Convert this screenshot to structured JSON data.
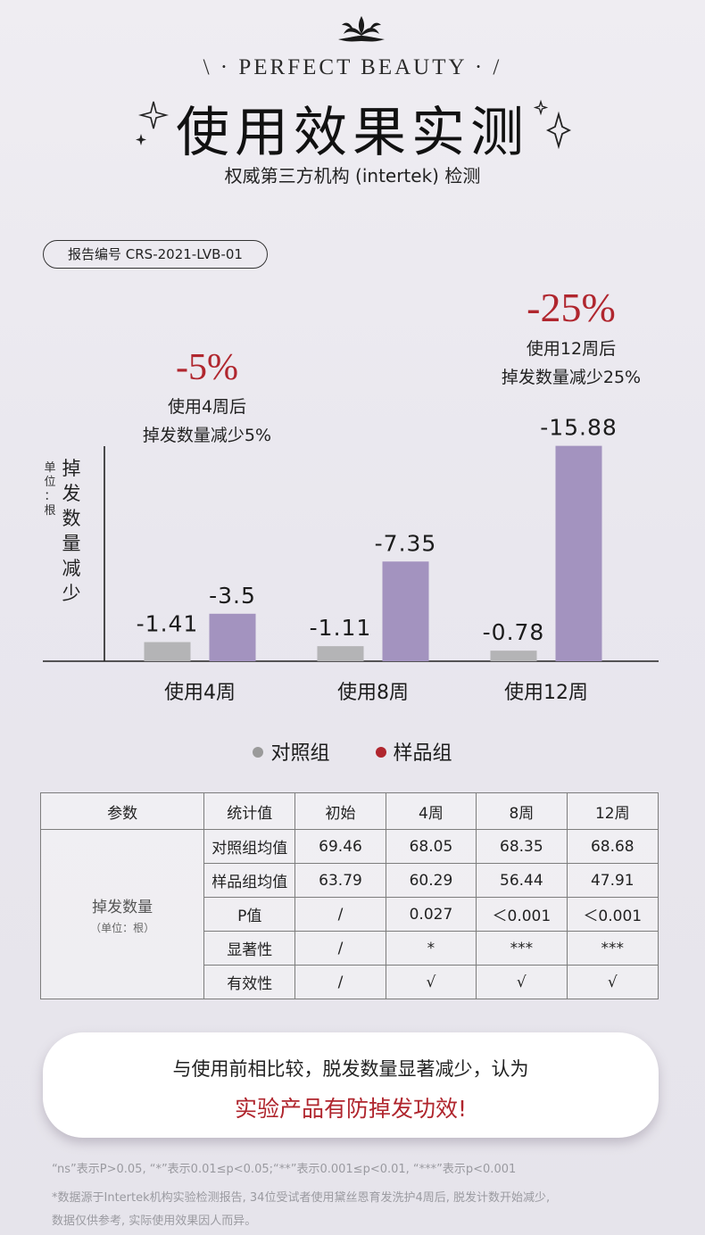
{
  "header": {
    "tagline": "\\ · PERFECT BEAUTY · /",
    "title": "使用效果实测",
    "subtitle": "权威第三方机构 (intertek) 检测",
    "report_no": "报告编号 CRS-2021-LVB-01"
  },
  "callouts": [
    {
      "percent": "-5%",
      "line1": "使用4周后",
      "line2": "掉发数量减少5%"
    },
    {
      "percent": "-25%",
      "line1": "使用12周后",
      "line2": "掉发数量减少25%"
    }
  ],
  "chart_data": {
    "type": "bar",
    "ylabel": "掉发数量减少",
    "unit_label": "单位：根",
    "categories": [
      "使用4周",
      "使用8周",
      "使用12周"
    ],
    "series": [
      {
        "name": "对照组",
        "values": [
          -1.41,
          -1.11,
          -0.78
        ],
        "labels": [
          "-1.41",
          "-1.11",
          "-0.78"
        ],
        "color": "#b4b4b6"
      },
      {
        "name": "样品组",
        "values": [
          -3.5,
          -7.35,
          -15.88
        ],
        "labels": [
          "-3.5",
          "-7.35",
          "-15.88"
        ],
        "color": "#a393bf"
      }
    ],
    "legend": [
      {
        "name": "对照组",
        "dot_color": "#9a9a9a"
      },
      {
        "name": "样品组",
        "dot_color": "#b0262e"
      }
    ]
  },
  "table": {
    "headers": [
      "参数",
      "统计值",
      "初始",
      "4周",
      "8周",
      "12周"
    ],
    "param_label": "掉发数量",
    "param_unit": "（单位：根）",
    "rows": [
      {
        "stat": "对照组均值",
        "values": [
          "69.46",
          "68.05",
          "68.35",
          "68.68"
        ]
      },
      {
        "stat": "样品组均值",
        "values": [
          "63.79",
          "60.29",
          "56.44",
          "47.91"
        ]
      },
      {
        "stat": "P值",
        "values": [
          "/",
          "0.027",
          "＜0.001",
          "＜0.001"
        ]
      },
      {
        "stat": "显著性",
        "values": [
          "/",
          "*",
          "***",
          "***"
        ]
      },
      {
        "stat": "有效性",
        "values": [
          "/",
          "√",
          "√",
          "√"
        ]
      }
    ]
  },
  "conclusion": {
    "line1": "与使用前相比较，脱发数量显著减少，认为",
    "line2": "实验产品有防掉发功效!"
  },
  "footnotes": {
    "line1": "“ns”表示P>0.05, “*”表示0.01≤p<0.05;“**”表示0.001≤p<0.01, “***”表示p<0.001",
    "line2": "*数据源于Intertek机构实验检测报告, 34位受试者使用黛丝恩育发洗护4周后, 脱发计数开始减少,",
    "line3": "数据仅供参考, 实际使用效果因人而异。"
  },
  "colors": {
    "accent": "#b0262e",
    "sample": "#a393bf",
    "control": "#b4b4b6"
  }
}
